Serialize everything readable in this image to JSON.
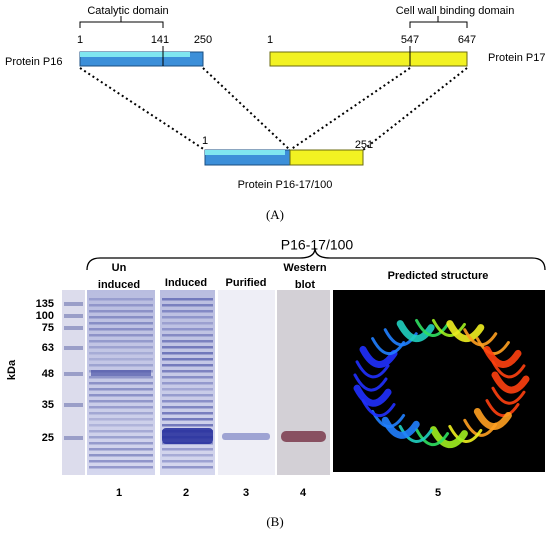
{
  "panel_a": {
    "p16": {
      "name": "Protein P16",
      "domain": "Catalytic domain",
      "positions": [
        "1",
        "141",
        "250"
      ]
    },
    "p17": {
      "name": "Protein P17",
      "domain": "Cell wall binding domain",
      "positions": [
        "1",
        "547",
        "647"
      ]
    },
    "fusion": {
      "name": "Protein P16-17/100",
      "positions": [
        "1",
        "251"
      ]
    },
    "label": "(A)"
  },
  "panel_b": {
    "title": "P16-17/100",
    "lane_titles": [
      "Un\ninduced",
      "Induced",
      "Purified",
      "Western\nblot",
      "Predicted structure"
    ],
    "marker_labels": [
      "135",
      "100",
      "75",
      "63",
      "48",
      "35",
      "25"
    ],
    "axis_label": "kDa",
    "lane_numbers": [
      "1",
      "2",
      "3",
      "4",
      "5"
    ],
    "label": "(B)"
  }
}
